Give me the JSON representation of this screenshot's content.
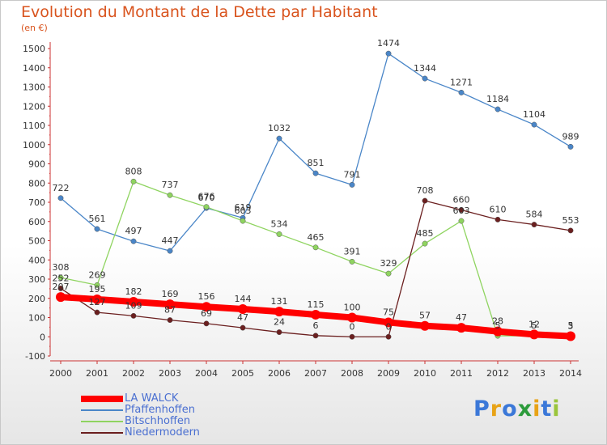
{
  "title": "Evolution du Montant de la Dette par Habitant",
  "subtitle": "(en €)",
  "logo": {
    "text": "Proxiti",
    "colors": [
      "#3b78d8",
      "#e8a317",
      "#3b78d8",
      "#2c9b3b",
      "#e8a317",
      "#3b78d8",
      "#9ac53c"
    ]
  },
  "chart_data": {
    "type": "line",
    "x": [
      "2000",
      "2001",
      "2002",
      "2003",
      "2004",
      "2005",
      "2006",
      "2007",
      "2008",
      "2009",
      "2010",
      "2011",
      "2012",
      "2013",
      "2014"
    ],
    "ylim": [
      -100,
      1500
    ],
    "yticks": [
      -100,
      0,
      100,
      200,
      300,
      400,
      500,
      600,
      700,
      800,
      900,
      1000,
      1100,
      1200,
      1300,
      1400,
      1500
    ],
    "grid": false,
    "legend_position": "bottom-left",
    "series": [
      {
        "name": "LA WALCK",
        "color": "#ff0000",
        "values": [
          207,
          195,
          182,
          169,
          156,
          144,
          131,
          115,
          100,
          75,
          57,
          47,
          28,
          12,
          3
        ]
      },
      {
        "name": "Pfaffenhoffen",
        "color": "#4a86c8",
        "values": [
          722,
          561,
          497,
          447,
          670,
          619,
          1032,
          851,
          791,
          1474,
          1344,
          1271,
          1184,
          1104,
          989
        ]
      },
      {
        "name": "Bitschhoffen",
        "color": "#8fd460",
        "values": [
          308,
          269,
          808,
          737,
          676,
          603,
          534,
          465,
          391,
          329,
          485,
          603,
          5,
          5,
          5
        ]
      },
      {
        "name": "Niedermodern",
        "color": "#6b1f1f",
        "values": [
          252,
          127,
          109,
          87,
          69,
          47,
          24,
          6,
          0,
          0,
          708,
          660,
          610,
          584,
          553
        ]
      }
    ],
    "data_labels": [
      [
        "207",
        "195",
        "182",
        "169",
        "156",
        "144",
        "131",
        "115",
        "100",
        "75",
        "57",
        "47",
        "28",
        "12",
        "3"
      ],
      [
        "722",
        "561",
        "497",
        "447",
        "670",
        "619",
        "1032",
        "851",
        "791",
        "1474",
        "1344",
        "1271",
        "1184",
        "1104",
        "989"
      ],
      [
        "308",
        "269",
        "808",
        "737",
        "676",
        "603",
        "534",
        "465",
        "391",
        "329",
        "485",
        "603",
        "5",
        "5",
        "5"
      ],
      [
        "252",
        "127",
        "109",
        "87",
        "69",
        "47",
        "24",
        "6",
        "0",
        "0",
        "708",
        "660",
        "610",
        "584",
        "553"
      ]
    ]
  }
}
